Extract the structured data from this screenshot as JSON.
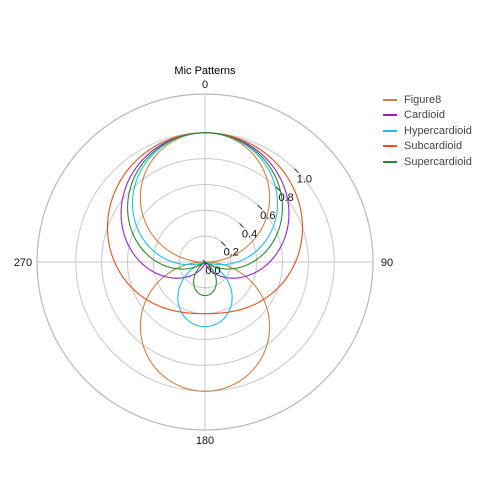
{
  "chart_data": {
    "type": "polar-line",
    "title": "Mic Patterns",
    "direction": "clockwise",
    "zero_location": "top",
    "angular_ticks": [
      "0",
      "90",
      "180",
      "270"
    ],
    "radial_ticks": [
      "0.0",
      "0.2",
      "0.4",
      "0.6",
      "0.8",
      "1.0"
    ],
    "rlim": [
      0,
      1.3
    ],
    "grid": true,
    "legend_position": "right",
    "series": [
      {
        "name": "Figure8",
        "a": 0.0,
        "color": "#d08040"
      },
      {
        "name": "Cardioid",
        "a": 0.5,
        "color": "#9b1fd0"
      },
      {
        "name": "Hypercardioid",
        "a": 0.25,
        "color": "#1ec0e6"
      },
      {
        "name": "Subcardioid",
        "a": 0.7,
        "color": "#e8501a"
      },
      {
        "name": "Supercardioid",
        "a": 0.37,
        "color": "#2a8a2a"
      }
    ],
    "formula": "r = |a + (1 - a) * cos(theta)|"
  }
}
